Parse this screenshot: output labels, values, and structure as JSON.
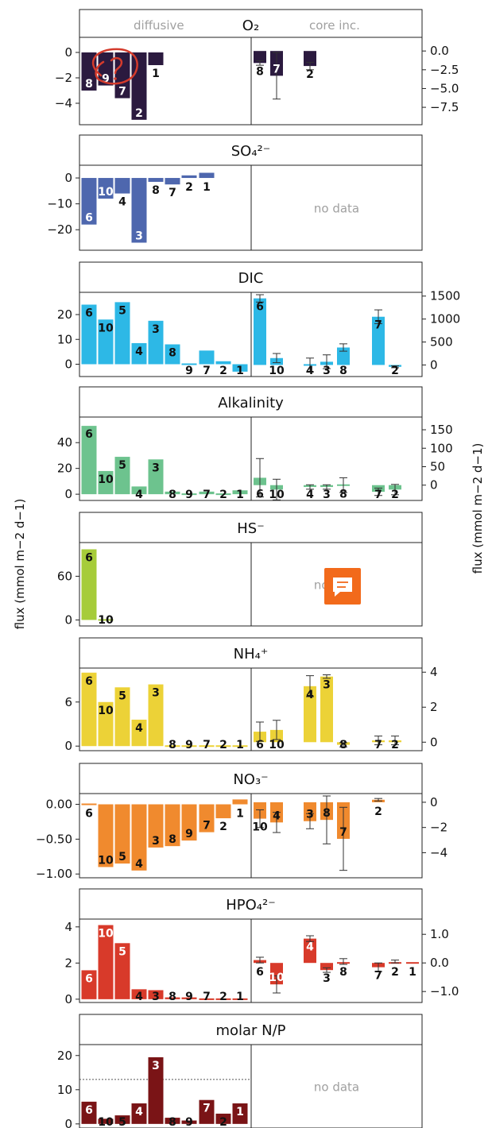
{
  "y_axis_label_left": "flux (mmol m−2 d−1)",
  "y_axis_label_right": "flux (mmol m−2 d−1)",
  "column_labels": {
    "left": "diffusive",
    "right": "core inc."
  },
  "annotation_icon": "red-hand-drawn-question-icon",
  "chat_icon": "orange-speech-bubble-icon",
  "colors": {
    "O2": "#2b1a3f",
    "SO4": "#4e67ae",
    "DIC": "#2db8e6",
    "Alk": "#6dc38e",
    "HS": "#a6cc3a",
    "NH4": "#ecd237",
    "NO3": "#f08a2e",
    "HPO4": "#d83a2a",
    "NP": "#7a1416"
  },
  "chart_data": [
    {
      "type": "bar",
      "id": "O2",
      "title": "O₂",
      "left": {
        "ylim": [
          -5.5,
          1.0
        ],
        "ticks": [
          0,
          -2,
          -4
        ],
        "tick_labels": [
          "0",
          "−2",
          "−4"
        ],
        "sites": [
          "8",
          "9",
          "7",
          "2",
          "1"
        ],
        "values": [
          -3.0,
          -2.6,
          -3.6,
          -5.3,
          -1.0
        ]
      },
      "right": {
        "ylim": [
          -9.5,
          1.5
        ],
        "ticks": [
          0,
          -2.5,
          -5,
          -7.5
        ],
        "tick_labels": [
          "0.0",
          "−2.5",
          "−5.0",
          "−7.5"
        ],
        "sites": [
          "8",
          "7",
          "2"
        ],
        "values": [
          -1.6,
          -3.3,
          -2.0
        ],
        "errors": [
          0.3,
          3.1,
          0.5
        ]
      }
    },
    {
      "type": "bar",
      "id": "SO4",
      "title": "SO₄²⁻",
      "left": {
        "ylim": [
          -27,
          4
        ],
        "ticks": [
          0,
          -10,
          -20
        ],
        "tick_labels": [
          "0",
          "−10",
          "−20"
        ],
        "sites": [
          "6",
          "10",
          "4",
          "3",
          "8",
          "7",
          "2",
          "1"
        ],
        "values": [
          -18.0,
          -8.0,
          -6.0,
          -25.0,
          -1.5,
          -2.5,
          1.0,
          2.0
        ]
      },
      "right": {
        "note": "no data"
      }
    },
    {
      "type": "bar",
      "id": "DIC",
      "title": "DIC",
      "left": {
        "ylim": [
          -4,
          28
        ],
        "ticks": [
          0,
          10,
          20
        ],
        "tick_labels": [
          "0",
          "10",
          "20"
        ],
        "sites": [
          "6",
          "10",
          "5",
          "4",
          "3",
          "8",
          "9",
          "7",
          "2",
          "1"
        ],
        "values": [
          24,
          18,
          25,
          8.5,
          17.5,
          8,
          0.5,
          5.5,
          1.2,
          -3
        ]
      },
      "right": {
        "ylim": [
          -200,
          1530
        ],
        "ticks": [
          0,
          500,
          1000,
          1500
        ],
        "tick_labels": [
          "0",
          "500",
          "1000",
          "1500"
        ],
        "sites": [
          "6",
          "10",
          "4",
          "3",
          "8",
          "7",
          "2"
        ],
        "values": [
          1450,
          150,
          0,
          70,
          380,
          1050,
          -40
        ],
        "errors": [
          80,
          100,
          150,
          150,
          80,
          150,
          20
        ]
      }
    },
    {
      "type": "bar",
      "id": "Alk",
      "title": "Alkalinity",
      "left": {
        "ylim": [
          -3,
          58
        ],
        "ticks": [
          0,
          20,
          40
        ],
        "tick_labels": [
          "0",
          "20",
          "40"
        ],
        "sites": [
          "6",
          "10",
          "5",
          "4",
          "3",
          "8",
          "9",
          "7",
          "2",
          "1"
        ],
        "values": [
          53,
          18,
          29,
          6,
          27,
          2,
          1,
          2,
          1,
          3
        ]
      },
      "right": {
        "ylim": [
          -35,
          178
        ],
        "ticks": [
          0,
          50,
          100,
          150
        ],
        "tick_labels": [
          "0",
          "50",
          "100",
          "150"
        ],
        "sites": [
          "6",
          "10",
          "4",
          "3",
          "8",
          "7",
          "2"
        ],
        "values": [
          20,
          -12,
          -5,
          -5,
          0,
          -18,
          -12
        ],
        "errors": [
          52,
          28,
          6,
          6,
          20,
          10,
          14
        ]
      }
    },
    {
      "type": "bar",
      "id": "HS",
      "title": "HS⁻",
      "left": {
        "ylim": [
          -5,
          103
        ],
        "ticks": [
          0,
          60
        ],
        "tick_labels": [
          "0",
          "60"
        ],
        "sites": [
          "6",
          "10"
        ],
        "values": [
          97,
          0
        ]
      },
      "right": {
        "note": "no data"
      }
    },
    {
      "type": "bar",
      "id": "NH4",
      "title": "NH₄⁺",
      "left": {
        "ylim": [
          -0.3,
          10.3
        ],
        "ticks": [
          0,
          6
        ],
        "tick_labels": [
          "0",
          "6"
        ],
        "sites": [
          "6",
          "10",
          "5",
          "4",
          "3",
          "8",
          "9",
          "7",
          "2",
          "1"
        ],
        "values": [
          10,
          6,
          8,
          3.6,
          8.4,
          0.15,
          0.15,
          0.15,
          0.1,
          0.05
        ]
      },
      "right": {
        "ylim": [
          -0.35,
          4.1
        ],
        "ticks": [
          0,
          2,
          4
        ],
        "tick_labels": [
          "0",
          "2",
          "4"
        ],
        "sites": [
          "6",
          "10",
          "4",
          "3",
          "8",
          "7",
          "2"
        ],
        "values": [
          0.6,
          0.7,
          3.2,
          3.75,
          -0.15,
          0.1,
          0.1
        ],
        "errors": [
          0.55,
          0.55,
          0.6,
          0.1,
          0.12,
          0.25,
          0.25
        ]
      }
    },
    {
      "type": "bar",
      "id": "NO3",
      "title": "NO₃⁻",
      "left": {
        "ylim": [
          -1.02,
          0.12
        ],
        "ticks": [
          0,
          -0.5,
          -1.0
        ],
        "tick_labels": [
          "0.00",
          "−0.50",
          "−1.00"
        ],
        "sites": [
          "6",
          "10",
          "5",
          "4",
          "3",
          "8",
          "9",
          "7",
          "2",
          "1"
        ],
        "values": [
          0.0,
          -0.9,
          -0.85,
          -0.95,
          -0.62,
          -0.6,
          -0.52,
          -0.4,
          -0.2,
          0.07
        ]
      },
      "right": {
        "ylim": [
          -5.8,
          0.5
        ],
        "ticks": [
          0,
          -2,
          -4
        ],
        "tick_labels": [
          "0",
          "−2",
          "−4"
        ],
        "sites": [
          "10",
          "4",
          "3",
          "8",
          "7",
          "2"
        ],
        "values": [
          -1.3,
          -1.6,
          -1.5,
          -1.4,
          -2.9,
          0.2
        ],
        "errors": [
          0.7,
          0.8,
          0.6,
          1.9,
          2.5,
          0.1
        ]
      }
    },
    {
      "type": "bar",
      "id": "HPO4",
      "title": "HPO₄²⁻",
      "left": {
        "ylim": [
          -0.05,
          4.3
        ],
        "ticks": [
          0,
          2,
          4
        ],
        "tick_labels": [
          "0",
          "2",
          "4"
        ],
        "sites": [
          "6",
          "10",
          "5",
          "4",
          "3",
          "8",
          "9",
          "7",
          "2",
          "1"
        ],
        "values": [
          1.6,
          4.1,
          3.1,
          0.55,
          0.5,
          0.1,
          0.1,
          0.05,
          0.05,
          0.05
        ]
      },
      "right": {
        "ylim": [
          -1.3,
          1.45
        ],
        "ticks": [
          -1,
          0,
          1
        ],
        "tick_labels": [
          "−1.0",
          "0.0",
          "1.0"
        ],
        "sites": [
          "6",
          "10",
          "4",
          "3",
          "8",
          "7",
          "2",
          "1"
        ],
        "values": [
          0.1,
          -0.75,
          0.85,
          -0.25,
          0.05,
          -0.15,
          0.05,
          0.02
        ],
        "errors": [
          0.1,
          0.3,
          0.1,
          0.08,
          0.1,
          0.15,
          0.05,
          0
        ]
      }
    },
    {
      "type": "bar",
      "id": "NP",
      "title": "molar N/P",
      "left": {
        "ylim": [
          -0.5,
          22.5
        ],
        "ticks": [
          0,
          10,
          20
        ],
        "tick_labels": [
          "0",
          "10",
          "20"
        ],
        "sites": [
          "6",
          "10",
          "5",
          "4",
          "3",
          "8",
          "9",
          "7",
          "2",
          "1"
        ],
        "values": [
          6.5,
          1.5,
          2.5,
          6,
          19.5,
          1.8,
          1.0,
          7.0,
          3.0,
          6.0
        ],
        "reference_line": 13
      },
      "right": {
        "note": "no data"
      }
    }
  ]
}
